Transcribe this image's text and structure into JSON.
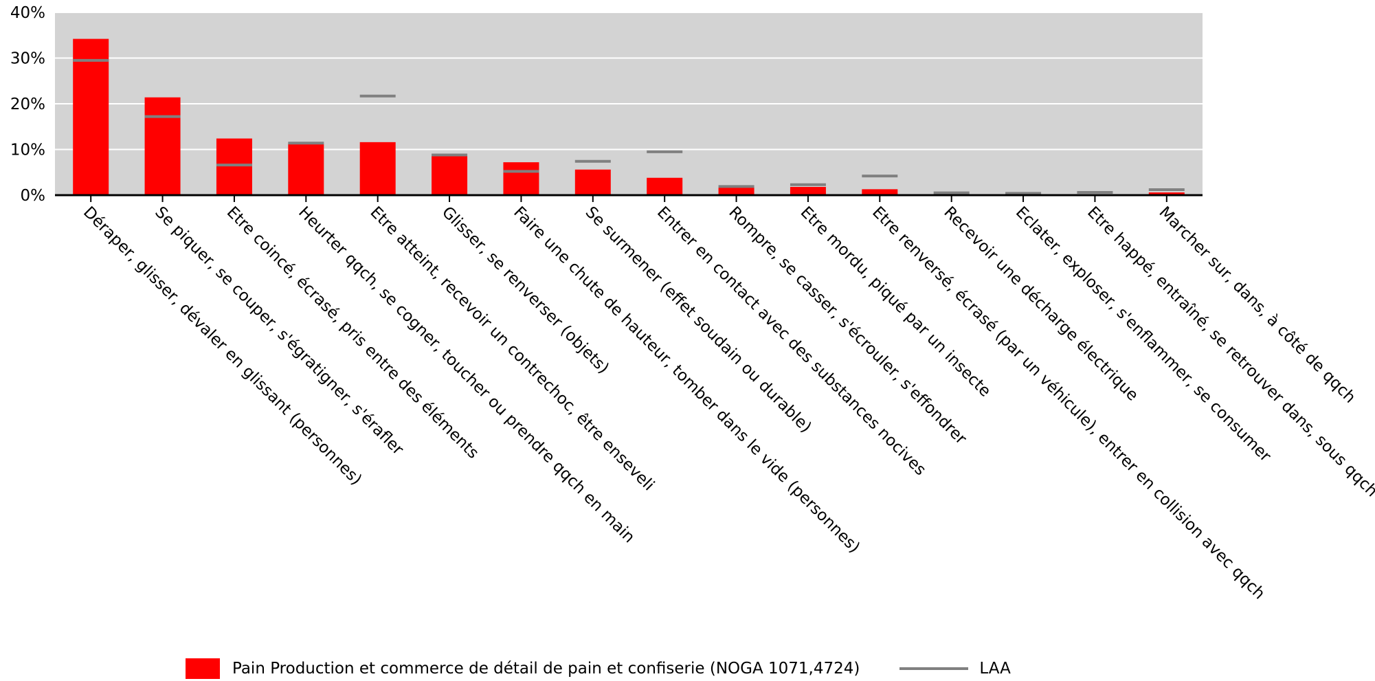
{
  "chart_data": {
    "type": "bar",
    "categories": [
      "Déraper, glisser, dévaler en glissant (personnes)",
      "Se piquer, se couper, s'égratigner, s'érafler",
      "Etre coincé, écrasé, pris entre des éléments",
      "Heurter qqch, se cogner, toucher ou prendre qqch en main",
      "Etre atteint, recevoir un contrechoc, être enseveli",
      "Glisser, se renverser (objets)",
      "Faire une chute de hauteur, tomber dans le vide (personnes)",
      "Se surmener (effet soudain ou durable)",
      "Entrer en contact avec des substances nocives",
      "Rompre, se casser, s'écrouler, s'effondrer",
      "Etre mordu, piqué par un insecte",
      "Etre renversé, écrasé (par un véhicule), entrer en collision avec qqch",
      "Recevoir une décharge électrique",
      "Eclater, exploser, s'enflammer, se consumer",
      "Etre happé, entraîné, se retrouver dans, sous qqch",
      "Marcher sur, dans, à côté de qqch"
    ],
    "series": [
      {
        "name": "Pain Production et commerce de détail de pain et confiserie (NOGA 1071,4724)",
        "kind": "bar",
        "color": "#ff0000",
        "values": [
          34.2,
          21.4,
          12.4,
          11.2,
          11.6,
          8.5,
          7.2,
          5.6,
          3.8,
          1.7,
          1.8,
          1.3,
          0.1,
          0.1,
          0.1,
          0.6
        ]
      },
      {
        "name": "LAA",
        "kind": "marker",
        "color": "#808080",
        "values": [
          29.5,
          17.2,
          6.6,
          11.4,
          21.7,
          8.8,
          5.2,
          7.4,
          9.5,
          1.9,
          2.3,
          4.2,
          0.5,
          0.4,
          0.6,
          1.2
        ]
      }
    ],
    "y_ticks": [
      "0%",
      "10%",
      "20%",
      "30%",
      "40%"
    ],
    "ylim": [
      0,
      40
    ],
    "grid": true,
    "legend_position": "bottom"
  }
}
